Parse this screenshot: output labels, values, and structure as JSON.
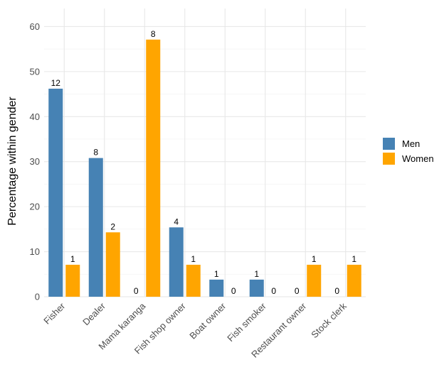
{
  "chart_data": {
    "type": "bar",
    "title": "",
    "xlabel": "",
    "ylabel": "Percentage within gender",
    "ylim": [
      0,
      64
    ],
    "yticks": [
      0,
      10,
      20,
      30,
      40,
      50,
      60
    ],
    "grid": true,
    "legend_position": "right",
    "categories": [
      "Fisher",
      "Dealer",
      "Mama karanga",
      "Fish shop owner",
      "Boat owner",
      "Fish smoker",
      "Restaurant owner",
      "Stock clerk"
    ],
    "series": [
      {
        "name": "Men",
        "color": "#4682B4",
        "values": [
          46.2,
          30.8,
          0,
          15.4,
          3.8,
          3.8,
          0,
          0
        ],
        "labels": [
          "12",
          "8",
          "0",
          "4",
          "1",
          "1",
          "0",
          "0"
        ]
      },
      {
        "name": "Women",
        "color": "#FFA500",
        "values": [
          7.1,
          14.3,
          57.1,
          7.1,
          0,
          0,
          7.1,
          7.1
        ],
        "labels": [
          "1",
          "2",
          "8",
          "1",
          "0",
          "0",
          "1",
          "1"
        ]
      }
    ]
  }
}
